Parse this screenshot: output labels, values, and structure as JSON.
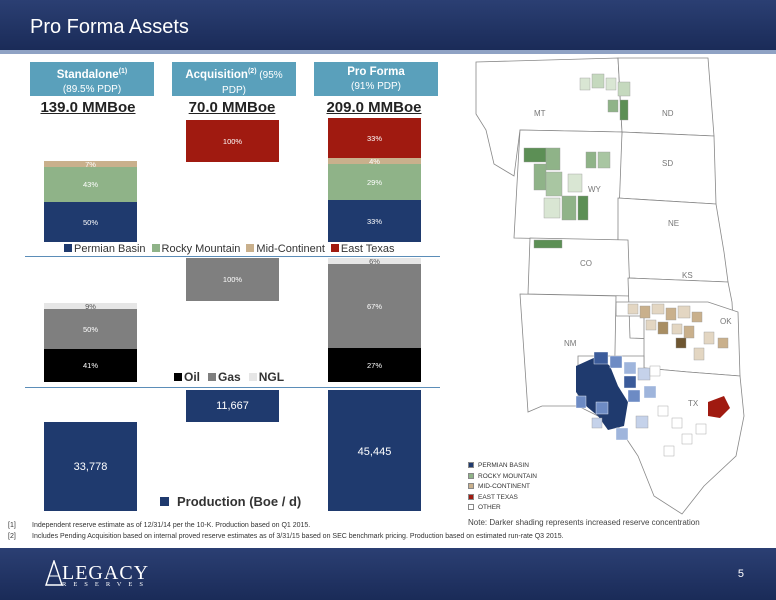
{
  "slide": {
    "title": "Pro Forma Assets",
    "page_number": "5"
  },
  "columns": [
    {
      "title": "Standalone",
      "sup": "(1)",
      "sub": "(89.5% PDP)",
      "total": "139.0 MMBoe"
    },
    {
      "title": "Acquisition",
      "sup": "(2)",
      "title_tail": " (95%",
      "sub": "PDP)",
      "total": "70.0 MMBoe"
    },
    {
      "title": "Pro Forma",
      "sup": "",
      "sub": "(91% PDP)",
      "total": "209.0 MMBoe"
    }
  ],
  "colors": {
    "permian": "#1f3a6e",
    "rocky": "#8fb388",
    "midcon": "#c9b08c",
    "east_texas": "#a01a10",
    "oil": "#000000",
    "gas": "#7f7f7f",
    "ngl": "#e6e6e6",
    "production": "#1f3a6e",
    "header_tab": "#5aa0bb",
    "band": "#1f305f"
  },
  "region_chart": {
    "legend": [
      "Permian Basin",
      "Rocky Mountain",
      "Mid-Continent",
      "East Texas"
    ],
    "standalone": {
      "permian": "50%",
      "rocky": "43%",
      "midcon": "7%"
    },
    "acquisition": {
      "east_texas": "100%"
    },
    "pro_forma": {
      "permian": "33%",
      "rocky": "29%",
      "midcon": "4%",
      "east_texas": "33%"
    }
  },
  "commodity_chart": {
    "legend": [
      "Oil",
      "Gas",
      "NGL"
    ],
    "standalone": {
      "oil": "41%",
      "gas": "50%",
      "ngl": "9%"
    },
    "acquisition": {
      "gas": "100%"
    },
    "pro_forma": {
      "oil": "27%",
      "gas": "67%",
      "ngl": "6%"
    }
  },
  "production_chart": {
    "legend": "Production (Boe / d)",
    "standalone": "33,778",
    "acquisition": "11,667",
    "pro_forma": "45,445"
  },
  "map": {
    "states": [
      "MT",
      "ND",
      "SD",
      "WY",
      "NE",
      "CO",
      "KS",
      "OK",
      "NM",
      "TX"
    ],
    "legend": [
      "PERMIAN BASIN",
      "ROCKY MOUNTAIN",
      "MID-CONTINENT",
      "EAST TEXAS",
      "OTHER"
    ],
    "note": "Note: Darker shading represents increased reserve concentration"
  },
  "footnotes": [
    {
      "num": "[1]",
      "text": "Independent reserve estimate as of 12/31/14 per the 10-K. Production based on Q1 2015."
    },
    {
      "num": "[2]",
      "text": "Includes Pending Acquisition based on internal proved reserve estimates as of 3/31/15 based on SEC benchmark pricing. Production based on estimated run-rate Q3 2015."
    }
  ],
  "logo": {
    "main": "LEGACY",
    "sub": "RESERVES"
  }
}
